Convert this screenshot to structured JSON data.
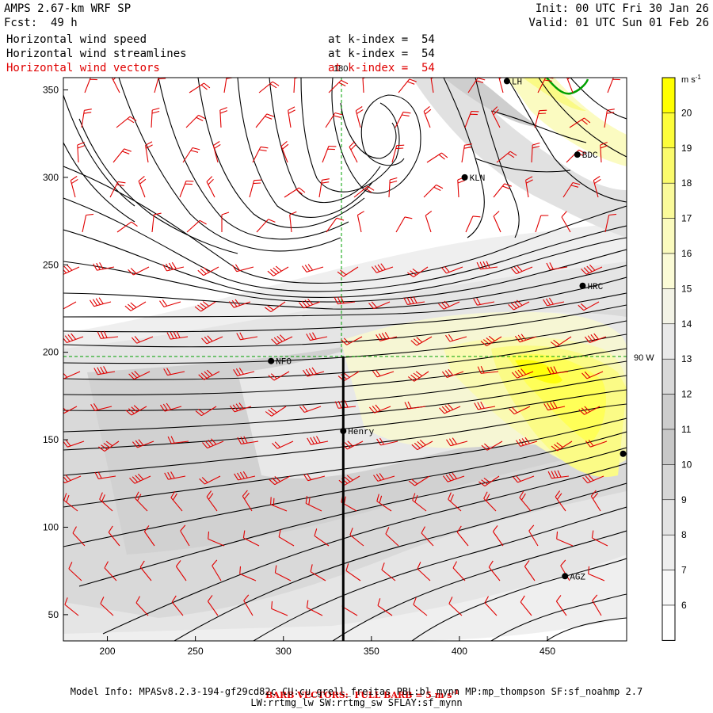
{
  "header": {
    "model_title": "AMPS 2.67-km WRF SP",
    "forecast_label": "Fcst:",
    "forecast_hours": "49 h",
    "init_time": "Init: 00 UTC Fri 30 Jan 26",
    "valid_time": "Valid: 01 UTC Sun 01 Feb 26"
  },
  "fields": [
    {
      "name": "Horizontal wind speed",
      "level": "at k-index =  54",
      "color": "#000000"
    },
    {
      "name": "Horizontal wind streamlines",
      "level": "at k-index =  54",
      "color": "#000000"
    },
    {
      "name": "Horizontal wind vectors",
      "level": "at k-index =  54",
      "color": "#e00000"
    }
  ],
  "map": {
    "x_ticks": [
      200,
      250,
      300,
      350,
      400,
      450
    ],
    "y_ticks": [
      50,
      100,
      150,
      200,
      250,
      300,
      350
    ],
    "x_range": [
      175,
      495
    ],
    "y_range": [
      35,
      357
    ],
    "meridian_label": "180",
    "latitude_label": "90 W",
    "cross_section_x": 334,
    "stations": [
      {
        "id": "NFO",
        "x": 293,
        "y": 195
      },
      {
        "id": "Henry",
        "x": 334,
        "y": 155
      },
      {
        "id": "HRC",
        "x": 470,
        "y": 238
      },
      {
        "id": "BDC",
        "x": 467,
        "y": 313
      },
      {
        "id": "KLN",
        "x": 403,
        "y": 300
      },
      {
        "id": "LH",
        "x": 427,
        "y": 355
      },
      {
        "id": "AGZ",
        "x": 460,
        "y": 72
      },
      {
        "id": "",
        "x": 493,
        "y": 142
      }
    ]
  },
  "colorbar": {
    "unit": "m s",
    "unit_sup": "-1",
    "levels": [
      {
        "label": "20",
        "color": "#ffff00"
      },
      {
        "label": "19",
        "color": "#fdfd3a"
      },
      {
        "label": "18",
        "color": "#fbfb6c"
      },
      {
        "label": "17",
        "color": "#fafa9a"
      },
      {
        "label": "16",
        "color": "#fbfbbe"
      },
      {
        "label": "15",
        "color": "#fbfbd6"
      },
      {
        "label": "14",
        "color": "#f3f3e6"
      },
      {
        "label": "13",
        "color": "#e9e9e9"
      },
      {
        "label": "12",
        "color": "#d9d9d9"
      },
      {
        "label": "11",
        "color": "#cdcdcd"
      },
      {
        "label": "10",
        "color": "#c8c8c8"
      },
      {
        "label": "9",
        "color": "#d6d6d6"
      },
      {
        "label": "8",
        "color": "#e3e3e3"
      },
      {
        "label": "7",
        "color": "#eeeeee"
      },
      {
        "label": "6",
        "color": "#f8f8f8"
      },
      {
        "label": "",
        "color": "#ffffff"
      }
    ]
  },
  "footer": {
    "barb_note": "BARB VECTORS:  FULL BARB = 5 m s",
    "barb_sup": "-1",
    "model_info": "Model Info: MPASv8.2.3-194-gf29cd82c CU:cu_grell_freitas PBL:bl_mynn MP:mp_thompson SF:sf_noahmp 2.7",
    "physics": "LW:rrtmg_lw SW:rrtmg_sw SFLAY:sf_mynn"
  },
  "colors": {
    "barb": "#e00000",
    "coast": "#00a000",
    "guide": "#00a000"
  }
}
